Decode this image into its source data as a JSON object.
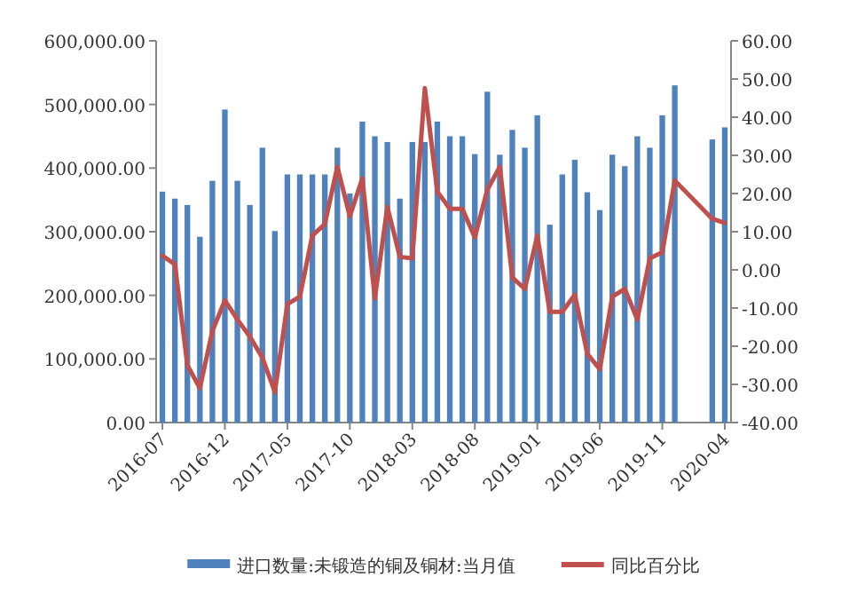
{
  "chart_data": {
    "type": "bar",
    "categories": [
      "2016-07",
      null,
      null,
      null,
      null,
      "2016-12",
      null,
      null,
      null,
      null,
      "2017-05",
      null,
      null,
      null,
      null,
      "2017-10",
      null,
      null,
      null,
      null,
      "2018-03",
      null,
      null,
      null,
      null,
      "2018-08",
      null,
      null,
      null,
      null,
      "2019-01",
      null,
      null,
      null,
      null,
      "2019-06",
      null,
      null,
      null,
      null,
      "2019-11",
      null,
      null,
      null,
      null,
      "2020-04"
    ],
    "series": [
      {
        "name": "进口数量:未锻造的铜及铜材:当月值",
        "color": "#4f81bd",
        "values": [
          363000,
          352000,
          342000,
          292000,
          380000,
          492000,
          380000,
          342000,
          432000,
          301000,
          390000,
          390000,
          390000,
          390000,
          432000,
          360000,
          473000,
          450000,
          441000,
          352000,
          441000,
          441000,
          473000,
          450000,
          450000,
          422000,
          520000,
          421000,
          460000,
          432000,
          483000,
          311000,
          390000,
          413000,
          362000,
          334000,
          421000,
          403000,
          450000,
          432000,
          483000,
          530000,
          null,
          null,
          445000,
          464000
        ]
      },
      {
        "name": "同比百分比",
        "type": "line",
        "axis": "y2",
        "color": "#c0504d",
        "values": [
          3.7,
          1.5,
          -25,
          -31,
          -16,
          -8,
          -13,
          -17.5,
          -23,
          -32,
          -9,
          -7,
          9,
          12,
          27,
          14,
          24,
          -7.5,
          16.5,
          3.4,
          3,
          47.6,
          20.5,
          16,
          16,
          8.5,
          21,
          27,
          -2,
          -5,
          9,
          -11,
          -11,
          -6.5,
          -22,
          -26,
          -7,
          -5,
          -13,
          3,
          4.6,
          23.4,
          null,
          null,
          13.4,
          12.3
        ]
      }
    ],
    "ylim": [
      0,
      600000
    ],
    "yticks": [
      {
        "value": 0,
        "label": "0.00"
      },
      {
        "value": 100000,
        "label": "100,000.00"
      },
      {
        "value": 200000,
        "label": "200,000.00"
      },
      {
        "value": 300000,
        "label": "300,000.00"
      },
      {
        "value": 400000,
        "label": "400,000.00"
      },
      {
        "value": 500000,
        "label": "500,000.00"
      },
      {
        "value": 600000,
        "label": "600,000.00"
      }
    ],
    "y2lim": [
      -40,
      60
    ],
    "y2ticks": [
      {
        "value": -40,
        "label": "-40.00"
      },
      {
        "value": -30,
        "label": "-30.00"
      },
      {
        "value": -20,
        "label": "-20.00"
      },
      {
        "value": -10,
        "label": "-10.00"
      },
      {
        "value": 0,
        "label": "0.00"
      },
      {
        "value": 10,
        "label": "10.00"
      },
      {
        "value": 20,
        "label": "20.00"
      },
      {
        "value": 30,
        "label": "30.00"
      },
      {
        "value": 40,
        "label": "40.00"
      },
      {
        "value": 50,
        "label": "50.00"
      },
      {
        "value": 60,
        "label": "60.00"
      }
    ],
    "legend": "bottom",
    "grid": false
  }
}
